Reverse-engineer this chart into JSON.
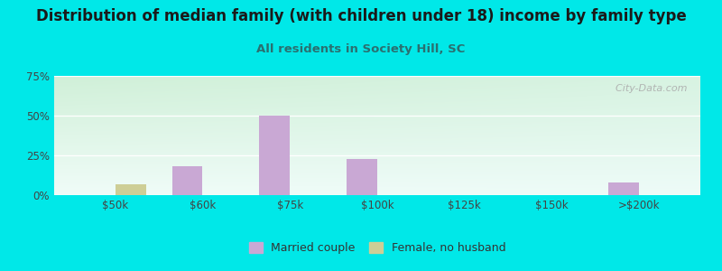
{
  "title": "Distribution of median family (with children under 18) income by family type",
  "subtitle": "All residents in Society Hill, SC",
  "categories": [
    "$50k",
    "$60k",
    "$75k",
    "$100k",
    "$125k",
    "$150k",
    ">$200k"
  ],
  "married_couple": [
    0,
    18,
    50,
    23,
    0,
    0,
    8
  ],
  "female_no_husband": [
    7,
    0,
    0,
    0,
    0,
    0,
    0
  ],
  "married_color": "#c9a8d4",
  "female_color": "#cece96",
  "background_color": "#00e8e8",
  "plot_bg_topleft": "#d0f0d8",
  "plot_bg_bottomright": "#e8faf8",
  "title_fontsize": 12,
  "subtitle_fontsize": 9.5,
  "ylim": [
    0,
    75
  ],
  "yticks": [
    0,
    25,
    50,
    75
  ],
  "ytick_labels": [
    "0%",
    "25%",
    "50%",
    "75%"
  ],
  "bar_width": 0.35,
  "watermark": "  City-Data.com"
}
